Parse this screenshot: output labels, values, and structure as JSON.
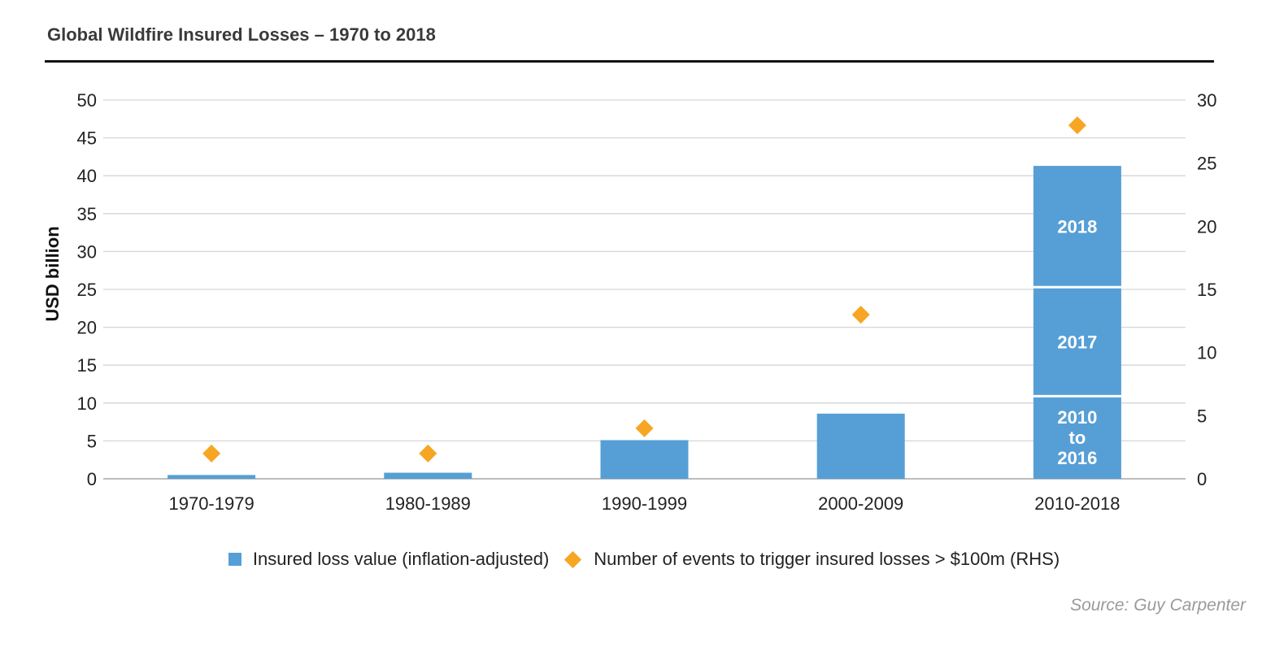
{
  "chart_data": {
    "type": "bar",
    "title": "Global Wildfire Insured Losses – 1970 to 2018",
    "ylabel": "USD billion",
    "ylim": [
      0,
      50
    ],
    "y2lim": [
      0,
      30
    ],
    "yticks": [
      0,
      5,
      10,
      15,
      20,
      25,
      30,
      35,
      40,
      45,
      50
    ],
    "y2ticks": [
      0,
      5,
      10,
      15,
      20,
      25,
      30
    ],
    "categories": [
      "1970-1979",
      "1980-1989",
      "1990-1999",
      "2000-2009",
      "2010-2018"
    ],
    "series": [
      {
        "name": "Insured loss value (inflation-adjusted)",
        "axis": "left",
        "kind": "bar",
        "color": "#569fd6",
        "values": [
          0.5,
          0.8,
          5.1,
          8.6,
          41.3
        ],
        "stack_last": [
          {
            "label": "2010 to 2016",
            "lines": [
              "2010",
              "to",
              "2016"
            ],
            "value": 10.9
          },
          {
            "label": "2017",
            "lines": [
              "2017"
            ],
            "value": 14.4
          },
          {
            "label": "2018",
            "lines": [
              "2018"
            ],
            "value": 16.0
          }
        ]
      },
      {
        "name": "Number of events to trigger insured losses > $100m (RHS)",
        "axis": "right",
        "kind": "marker",
        "color": "#f6a623",
        "values": [
          2,
          2,
          4,
          13,
          28
        ]
      }
    ],
    "grid": true,
    "legend_position": "bottom-center",
    "source": "Source: Guy Carpenter"
  }
}
